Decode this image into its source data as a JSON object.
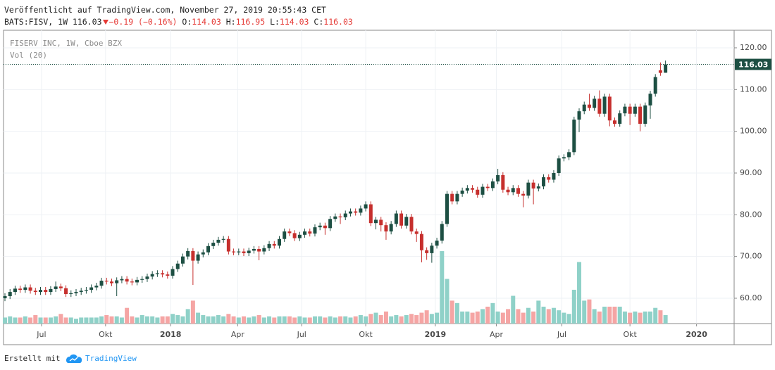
{
  "header": {
    "published": "Veröffentlicht auf TradingView.com, November 27, 2019 20:55:43 CET",
    "symbol": "BATS:FISV, 1W",
    "change": "−0.19 (−0.16%)",
    "ohlc_labels": [
      "O:",
      "H:",
      "L:",
      "C:"
    ]
  },
  "footer": {
    "made_with": "Erstellt mit",
    "brand": "TradingView"
  },
  "chart_data": {
    "type": "candlestick",
    "legend": [
      "FISERV INC, 1W, Cboe BZX",
      "Vol (20)"
    ],
    "up_color": "#1d4f43",
    "down_color": "#c62f2d",
    "vol_up_color": "#8fd1c8",
    "vol_down_color": "#f5a5a4",
    "xlim": [
      -0.28,
      143.5
    ],
    "ylim": [
      53.93,
      124.21
    ],
    "vlim": [
      0,
      243
    ],
    "grid": true,
    "yticks": [
      {
        "value": 60,
        "label": "60.00"
      },
      {
        "value": 70,
        "label": "70.00"
      },
      {
        "value": 80,
        "label": "80.00"
      },
      {
        "value": 90,
        "label": "90.00"
      },
      {
        "value": 100,
        "label": "100.00"
      },
      {
        "value": 110,
        "label": "110.00"
      },
      {
        "value": 120,
        "label": "120.00"
      }
    ],
    "xticks": [
      {
        "value": 7.2,
        "label": "Jul"
      },
      {
        "value": 19.8,
        "label": "Okt"
      },
      {
        "value": 32.6,
        "label": "2018"
      },
      {
        "value": 45.8,
        "label": "Apr"
      },
      {
        "value": 58.4,
        "label": "Jul"
      },
      {
        "value": 71.0,
        "label": "Okt"
      },
      {
        "value": 84.7,
        "label": "2019"
      },
      {
        "value": 96.7,
        "label": "Apr"
      },
      {
        "value": 109.6,
        "label": "Jul"
      },
      {
        "value": 123.0,
        "label": "Okt"
      },
      {
        "value": 136.1,
        "label": "2020"
      }
    ],
    "open": [
      60.0,
      60.5,
      61.5,
      62.3,
      62.0,
      62.6,
      61.8,
      61.5,
      62.0,
      61.5,
      62.2,
      62.8,
      62.4,
      61.0,
      61.2,
      61.5,
      61.8,
      62.0,
      62.6,
      63.0,
      64.2,
      64.0,
      63.6,
      64.3,
      64.6,
      64.0,
      63.8,
      64.4,
      64.6,
      65.2,
      65.8,
      66.0,
      65.7,
      65.4,
      67.0,
      68.3,
      70.0,
      71.3,
      69.0,
      70.5,
      71.0,
      72.5,
      73.3,
      74.0,
      74.2,
      71.2,
      71.0,
      71.2,
      70.8,
      71.4,
      71.8,
      71.2,
      72.0,
      73.0,
      72.6,
      74.2,
      76.0,
      75.6,
      74.4,
      75.2,
      76.0,
      75.5,
      77.0,
      77.4,
      76.8,
      79.0,
      79.6,
      79.4,
      80.3,
      80.8,
      80.5,
      81.5,
      82.5,
      78.0,
      78.8,
      77.5,
      76.0,
      77.8,
      80.3,
      77.4,
      79.5,
      76.0,
      75.4,
      71.5,
      70.8,
      72.6,
      73.8,
      77.8,
      85.0,
      83.2,
      85.0,
      85.8,
      86.4,
      86.0,
      84.8,
      86.7,
      86.4,
      88.0,
      89.5,
      86.0,
      85.4,
      86.4,
      85.0,
      84.6,
      87.7,
      86.3,
      86.8,
      89.0,
      88.4,
      90.0,
      93.5,
      93.8,
      95.0,
      102.8,
      104.8,
      106.4,
      105.6,
      107.8,
      104.2,
      108.3,
      102.6,
      101.8,
      104.3,
      105.9,
      104.2,
      105.9,
      101.8,
      106.2,
      109.0,
      114.6,
      114.03
    ],
    "high": [
      61.2,
      62.2,
      63.0,
      63.0,
      63.3,
      63.3,
      62.5,
      62.7,
      62.7,
      62.9,
      64.0,
      63.5,
      63.1,
      61.9,
      62.2,
      62.5,
      62.7,
      63.3,
      63.7,
      64.9,
      64.9,
      64.7,
      65.0,
      65.3,
      65.3,
      64.7,
      65.1,
      65.3,
      65.9,
      66.5,
      66.7,
      66.7,
      66.4,
      67.7,
      69.0,
      70.7,
      72.0,
      72.0,
      71.2,
      71.7,
      73.2,
      74.0,
      74.7,
      74.9,
      74.9,
      71.9,
      71.9,
      71.9,
      72.1,
      72.5,
      72.5,
      72.7,
      73.7,
      73.7,
      74.9,
      76.7,
      76.7,
      76.3,
      75.9,
      76.7,
      76.7,
      77.7,
      78.1,
      78.1,
      79.7,
      80.3,
      80.3,
      81.0,
      81.5,
      81.5,
      82.2,
      83.2,
      83.2,
      79.5,
      79.5,
      78.2,
      78.5,
      81.0,
      81.0,
      80.2,
      80.2,
      76.7,
      76.1,
      72.2,
      73.3,
      74.5,
      78.5,
      85.7,
      85.7,
      85.7,
      86.5,
      87.1,
      87.1,
      86.7,
      87.4,
      87.4,
      88.7,
      91.0,
      90.2,
      86.7,
      87.1,
      87.1,
      85.7,
      88.4,
      88.4,
      87.5,
      89.7,
      89.7,
      90.7,
      94.2,
      94.5,
      95.7,
      103.5,
      105.5,
      107.1,
      109.0,
      108.5,
      109.8,
      109.0,
      109.0,
      103.3,
      105.0,
      106.6,
      106.6,
      106.6,
      106.6,
      106.9,
      109.7,
      113.7,
      116.5,
      116.95
    ],
    "low": [
      59.3,
      59.8,
      60.8,
      61.3,
      61.3,
      61.1,
      60.8,
      60.8,
      60.8,
      60.8,
      61.5,
      61.7,
      60.3,
      60.3,
      60.5,
      60.8,
      61.1,
      61.3,
      61.9,
      62.3,
      63.3,
      62.9,
      60.5,
      63.6,
      63.3,
      63.1,
      63.1,
      63.7,
      63.9,
      64.5,
      65.1,
      65.0,
      64.7,
      64.7,
      66.3,
      67.6,
      69.3,
      63.2,
      68.3,
      69.8,
      70.3,
      71.8,
      72.6,
      73.3,
      70.5,
      70.3,
      70.3,
      70.1,
      70.1,
      70.7,
      69.1,
      70.5,
      71.3,
      71.9,
      71.9,
      73.5,
      74.9,
      73.7,
      73.7,
      74.5,
      74.8,
      74.8,
      76.3,
      75.2,
      76.1,
      78.3,
      77.8,
      78.7,
      79.6,
      79.8,
      79.8,
      80.8,
      77.3,
      76.5,
      76.0,
      74.0,
      75.3,
      77.1,
      76.7,
      76.7,
      75.3,
      73.5,
      68.6,
      69.2,
      68.5,
      71.9,
      73.1,
      77.1,
      82.5,
      82.5,
      84.3,
      85.1,
      85.3,
      84.1,
      84.1,
      85.7,
      85.7,
      87.3,
      85.3,
      84.7,
      84.7,
      84.3,
      81.8,
      83.9,
      82.5,
      85.6,
      86.1,
      87.7,
      87.7,
      89.3,
      92.8,
      93.1,
      94.3,
      99.8,
      104.1,
      104.9,
      104.9,
      103.5,
      103.5,
      101.2,
      101.1,
      101.1,
      103.6,
      101.5,
      103.5,
      100.0,
      101.1,
      103.0,
      108.3,
      113.3,
      114.03
    ],
    "close": [
      60.5,
      61.5,
      62.3,
      62.0,
      62.6,
      61.8,
      61.5,
      62.0,
      61.5,
      62.2,
      62.8,
      62.4,
      61.0,
      61.2,
      61.5,
      61.8,
      62.0,
      62.6,
      63.0,
      64.2,
      64.0,
      63.6,
      64.3,
      64.6,
      64.0,
      63.8,
      64.4,
      64.6,
      65.2,
      65.8,
      66.0,
      65.7,
      65.4,
      67.0,
      68.3,
      70.0,
      71.3,
      69.0,
      70.5,
      71.0,
      72.5,
      73.3,
      74.0,
      74.2,
      71.2,
      71.0,
      71.2,
      70.8,
      71.4,
      71.8,
      71.2,
      72.0,
      73.0,
      72.6,
      74.2,
      76.0,
      75.6,
      74.4,
      75.2,
      76.0,
      75.5,
      77.0,
      77.4,
      76.8,
      79.0,
      79.6,
      79.4,
      80.3,
      80.8,
      80.5,
      81.5,
      82.5,
      78.0,
      78.8,
      77.5,
      76.0,
      77.8,
      80.3,
      77.4,
      79.5,
      76.0,
      75.4,
      71.5,
      70.8,
      72.6,
      73.8,
      77.8,
      85.0,
      83.2,
      85.0,
      85.8,
      86.4,
      86.0,
      84.8,
      86.7,
      86.4,
      88.0,
      89.5,
      86.0,
      85.4,
      86.4,
      85.0,
      84.6,
      87.7,
      86.3,
      86.8,
      89.0,
      88.4,
      90.0,
      93.5,
      93.8,
      95.0,
      102.8,
      104.8,
      106.4,
      105.6,
      107.8,
      104.2,
      108.3,
      102.6,
      101.8,
      104.3,
      105.9,
      104.2,
      105.9,
      101.8,
      106.2,
      109.0,
      113.0,
      114.0,
      116.03
    ],
    "volume": [
      5,
      6,
      5,
      5,
      6,
      5,
      7,
      5,
      5,
      5,
      6,
      8,
      5,
      5,
      4,
      5,
      5,
      5,
      5,
      6,
      7,
      6,
      6,
      5,
      13,
      6,
      5,
      7,
      6,
      6,
      5,
      6,
      6,
      8,
      7,
      6,
      12,
      19,
      9,
      7,
      6,
      6,
      7,
      6,
      8,
      6,
      5,
      6,
      5,
      6,
      7,
      5,
      6,
      5,
      6,
      6,
      6,
      5,
      6,
      5,
      5,
      6,
      6,
      5,
      6,
      5,
      6,
      6,
      5,
      6,
      7,
      6,
      8,
      9,
      7,
      10,
      6,
      7,
      6,
      7,
      8,
      7,
      9,
      11,
      8,
      9,
      60,
      37,
      19,
      17,
      10,
      10,
      9,
      10,
      12,
      14,
      17,
      10,
      9,
      12,
      23,
      12,
      9,
      13,
      10,
      19,
      14,
      12,
      13,
      11,
      9,
      8,
      28,
      51,
      19,
      20,
      12,
      10,
      14,
      14,
      14,
      14,
      10,
      9,
      10,
      9,
      10,
      10,
      13,
      11,
      7
    ]
  }
}
